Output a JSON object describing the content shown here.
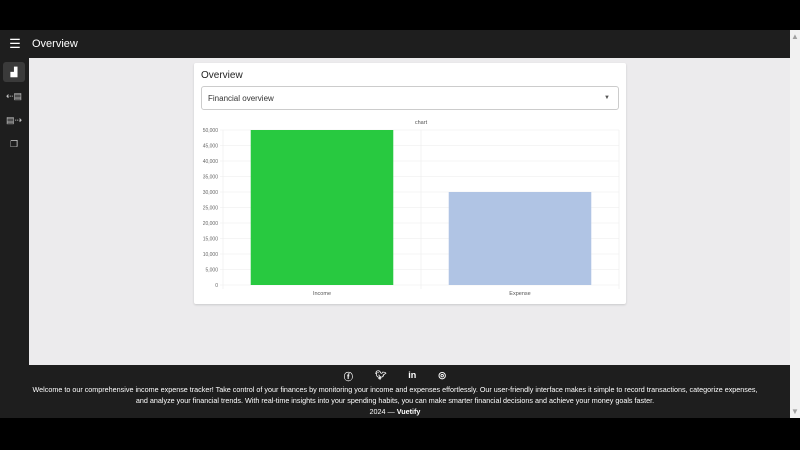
{
  "appbar": {
    "title": "Overview",
    "menu_icon": "menu-icon"
  },
  "sidebar": {
    "items": [
      {
        "icon": "bar-chart-icon",
        "active": true
      },
      {
        "icon": "income-icon"
      },
      {
        "icon": "expense-icon"
      },
      {
        "icon": "calendar-icon"
      }
    ]
  },
  "card": {
    "title": "Overview",
    "select_value": "Financial overview"
  },
  "chart_data": {
    "type": "bar",
    "title": "chart",
    "categories": [
      "Income",
      "Expense"
    ],
    "values": [
      50000,
      30000
    ],
    "colors": [
      "#28c940",
      "#b0c4e4"
    ],
    "ylim": [
      0,
      50000
    ],
    "yticks": [
      "0",
      "5,000",
      "10,000",
      "15,000",
      "20,000",
      "25,000",
      "30,000",
      "35,000",
      "40,000",
      "45,000",
      "50,000"
    ],
    "grid": true
  },
  "footer": {
    "social": [
      "facebook",
      "twitter",
      "linkedin",
      "instagram"
    ],
    "description": "Welcome to our comprehensive income expense tracker! Take control of your finances by monitoring your income and expenses effortlessly. Our user-friendly interface makes it simple to record transactions, categorize expenses, and analyze your financial trends. With real-time insights into your spending habits, you can make smarter financial decisions and achieve your money goals faster.",
    "year": "2024 —",
    "brand": "Vuetify"
  }
}
